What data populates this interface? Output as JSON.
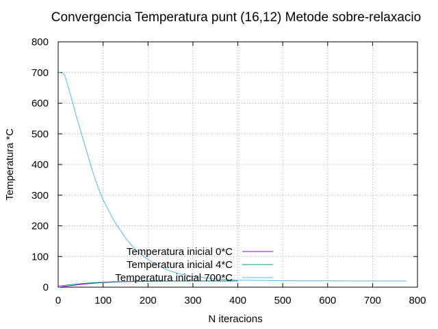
{
  "chart_data": {
    "type": "line",
    "title": "Convergencia Temperatura punt (16,12) Metode sobre-relaxacio",
    "xlabel": "N iteracions",
    "ylabel": "Temperatura *C",
    "xlim": [
      0,
      800
    ],
    "ylim": [
      0,
      800
    ],
    "xticks": [
      0,
      100,
      200,
      300,
      400,
      500,
      600,
      700,
      800
    ],
    "yticks": [
      0,
      100,
      200,
      300,
      400,
      500,
      600,
      700,
      800
    ],
    "grid": true,
    "legend_position": "bottom-center",
    "series": [
      {
        "name": "Temperatura inicial 0*C",
        "color": "#9400d3",
        "x": [
          1,
          10,
          25,
          50,
          75,
          100,
          125,
          150,
          175,
          200,
          225,
          250,
          300,
          350,
          400
        ],
        "y": [
          0,
          1.5,
          4.5,
          9,
          12.5,
          15,
          16.8,
          18,
          18.8,
          19.3,
          19.7,
          20,
          20.2,
          20.3,
          20.3
        ]
      },
      {
        "name": "Temperatura inicial 4*C",
        "color": "#009e73",
        "x": [
          1,
          10,
          25,
          50,
          75,
          100,
          125,
          150,
          175,
          200,
          225,
          250,
          300,
          350,
          400
        ],
        "y": [
          4,
          5.3,
          7.8,
          11.5,
          14.3,
          16.4,
          17.8,
          18.8,
          19.4,
          19.8,
          20,
          20.2,
          20.3,
          20.3,
          20.3
        ]
      },
      {
        "name": "Temperatura inicial 700*C",
        "color": "#56b4e9",
        "x": [
          1,
          10,
          15,
          25,
          40,
          50,
          60,
          75,
          90,
          100,
          125,
          150,
          175,
          200,
          225,
          250,
          275,
          300,
          350,
          400,
          500,
          600,
          700,
          775
        ],
        "y": [
          700,
          698,
          690,
          640,
          560,
          510,
          460,
          385,
          320,
          285,
          215,
          160,
          118,
          90,
          68,
          52,
          42,
          35,
          27,
          23,
          21,
          20.5,
          20.3,
          20.3
        ]
      }
    ]
  }
}
